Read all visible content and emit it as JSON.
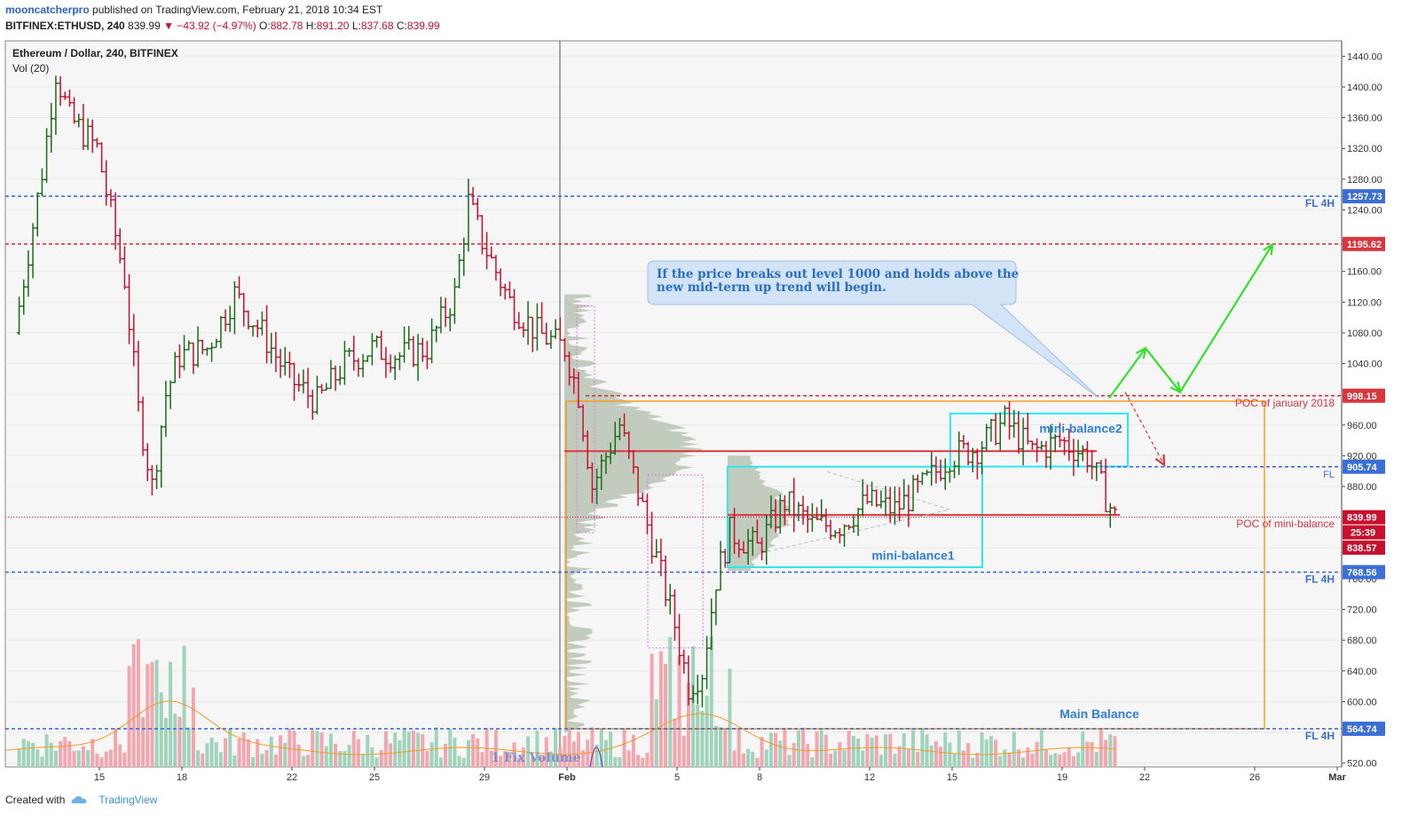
{
  "header": {
    "author": "mooncatcherpro",
    "published": "published on TradingView.com, February 21, 2018 10:34 EST",
    "symbol": "BITFINEX:ETHUSD, 240",
    "last": "839.99",
    "change": "▼ −43.92 (−4.97%)",
    "o_label": "O:",
    "o": "882.78",
    "h_label": "H:",
    "h": "891.20",
    "l_label": "L:",
    "l": "837.68",
    "c_label": "C:",
    "c": "839.99"
  },
  "footer": {
    "created_with": "Created with",
    "brand": "TradingView"
  },
  "colors": {
    "up": "#1a6b1a",
    "down": "#c8102e",
    "vol_up": "#9fd3bb",
    "vol_down": "#f2a6ad",
    "blue_level": "#3b6fd6",
    "red_level": "#d9363e",
    "orange": "#f59a23",
    "cyan": "#2ee6f0",
    "green_arrow": "#33e02a",
    "profile": "#b8c4b4",
    "callout": "#d3e4f7"
  },
  "chart_data": {
    "type": "candlestick",
    "title": "Ethereum / Dollar, 240, BITFINEX",
    "volume_label": "Vol (20)",
    "x_tick_labels": [
      "15",
      "18",
      "22",
      "25",
      "29",
      "Feb",
      "5",
      "8",
      "12",
      "15",
      "19",
      "22",
      "26",
      "Mar"
    ],
    "y_ticks": [
      520,
      560,
      600,
      640,
      680,
      720,
      760,
      800,
      840,
      880,
      920,
      960,
      1000,
      1040,
      1080,
      1120,
      1160,
      1200,
      1240,
      1280,
      1320,
      1360,
      1400,
      1440
    ],
    "ylim": [
      515,
      1460
    ],
    "price_tags": [
      {
        "value": 1257.73,
        "label": "1257.73",
        "color": "#3b6fd6"
      },
      {
        "value": 1195.62,
        "label": "1195.62",
        "color": "#d9363e"
      },
      {
        "value": 998.15,
        "label": "998.15",
        "color": "#d9363e"
      },
      {
        "value": 905.74,
        "label": "905.74",
        "color": "#3b6fd6"
      },
      {
        "value": 839.99,
        "label": "839.99",
        "color": "#c8102e"
      },
      {
        "value": 838.57,
        "label": "838.57",
        "color": "#c8102e"
      },
      {
        "value": 768.56,
        "label": "768.56",
        "color": "#3b6fd6"
      },
      {
        "value": 564.74,
        "label": "564.74",
        "color": "#3b6fd6"
      }
    ],
    "countdown": "25:39",
    "levels": [
      {
        "value": 1257.73,
        "label": "FL 4H"
      },
      {
        "value": 768.56,
        "label": "FL 4H"
      },
      {
        "value": 564.74,
        "label": "FL 4H"
      },
      {
        "value": 905.74,
        "label": "FL"
      }
    ],
    "annotations": {
      "poc_january": "POC of january 2018",
      "poc_mini": "POC of mini-balance",
      "mini_balance1": "mini-balance1",
      "mini_balance2": "mini-balance2",
      "main_balance": "Main  Balance",
      "fix_volume": "1 Fix Volume",
      "callout": "If the price breaks out level 1000 and holds above the new mid-term up trend will begin."
    },
    "candle_anchors": [
      {
        "date": "Jan 12",
        "close": 1080
      },
      {
        "date": "Jan 13",
        "close": 1290
      },
      {
        "date": "Jan 13.5",
        "close": 1420
      },
      {
        "date": "Jan 14",
        "close": 1360
      },
      {
        "date": "Jan 15",
        "close": 1320
      },
      {
        "date": "Jan 16",
        "close": 1150
      },
      {
        "date": "Jan 16.5",
        "close": 980
      },
      {
        "date": "Jan 17",
        "close": 880
      },
      {
        "date": "Jan 17.5",
        "close": 1000
      },
      {
        "date": "Jan 18",
        "close": 1050
      },
      {
        "date": "Jan 19",
        "close": 1060
      },
      {
        "date": "Jan 20",
        "close": 1130
      },
      {
        "date": "Jan 21",
        "close": 1080
      },
      {
        "date": "Jan 22",
        "close": 1020
      },
      {
        "date": "Jan 23",
        "close": 990
      },
      {
        "date": "Jan 24",
        "close": 1040
      },
      {
        "date": "Jan 25",
        "close": 1060
      },
      {
        "date": "Jan 26",
        "close": 1050
      },
      {
        "date": "Jan 27",
        "close": 1060
      },
      {
        "date": "Jan 28",
        "close": 1130
      },
      {
        "date": "Jan 28.5",
        "close": 1250
      },
      {
        "date": "Jan 29",
        "close": 1200
      },
      {
        "date": "Jan 30",
        "close": 1120
      },
      {
        "date": "Jan 31",
        "close": 1080
      },
      {
        "date": "Feb 1",
        "close": 1060
      },
      {
        "date": "Feb 1.5",
        "close": 1000
      },
      {
        "date": "Feb 2",
        "close": 880
      },
      {
        "date": "Feb 3",
        "close": 960
      },
      {
        "date": "Feb 4",
        "close": 830
      },
      {
        "date": "Feb 5",
        "close": 700
      },
      {
        "date": "Feb 5.5",
        "close": 620
      },
      {
        "date": "Feb 6",
        "close": 640
      },
      {
        "date": "Feb 6.5",
        "close": 760
      },
      {
        "date": "Feb 7",
        "close": 820
      },
      {
        "date": "Feb 8",
        "close": 800
      },
      {
        "date": "Feb 9",
        "close": 860
      },
      {
        "date": "Feb 10",
        "close": 830
      },
      {
        "date": "Feb 11",
        "close": 830
      },
      {
        "date": "Feb 12",
        "close": 860
      },
      {
        "date": "Feb 13",
        "close": 850
      },
      {
        "date": "Feb 14",
        "close": 880
      },
      {
        "date": "Feb 15",
        "close": 920
      },
      {
        "date": "Feb 16",
        "close": 930
      },
      {
        "date": "Feb 17",
        "close": 965
      },
      {
        "date": "Feb 18",
        "close": 925
      },
      {
        "date": "Feb 19",
        "close": 940
      },
      {
        "date": "Feb 20",
        "close": 920
      },
      {
        "date": "Feb 20.5",
        "close": 880
      },
      {
        "date": "Feb 21",
        "close": 840
      }
    ]
  }
}
